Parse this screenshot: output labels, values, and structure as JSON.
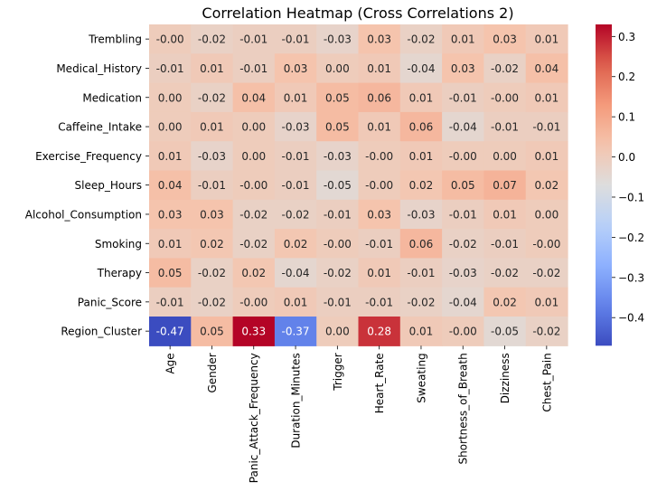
{
  "chart_data": {
    "type": "heatmap",
    "title": "Correlation Heatmap (Cross Correlations 2)",
    "xlabel": "",
    "ylabel": "",
    "colormap": "coolwarm",
    "vmin": -0.47,
    "vmax": 0.33,
    "value_format": "2 decimals",
    "rows": [
      "Trembling",
      "Medical_History",
      "Medication",
      "Caffeine_Intake",
      "Exercise_Frequency",
      "Sleep_Hours",
      "Alcohol_Consumption",
      "Smoking",
      "Therapy",
      "Panic_Score",
      "Region_Cluster"
    ],
    "columns": [
      "Age",
      "Gender",
      "Panic_Attack_Frequency",
      "Duration_Minutes",
      "Trigger",
      "Heart_Rate",
      "Sweating",
      "Shortness_of_Breath",
      "Dizziness",
      "Chest_Pain"
    ],
    "values": [
      [
        -0.0,
        -0.02,
        -0.01,
        -0.01,
        -0.03,
        0.03,
        -0.02,
        0.01,
        0.03,
        0.01
      ],
      [
        -0.01,
        0.01,
        -0.01,
        0.03,
        0.0,
        0.01,
        -0.04,
        0.03,
        -0.02,
        0.04
      ],
      [
        0.0,
        -0.02,
        0.04,
        0.01,
        0.05,
        0.06,
        0.01,
        -0.01,
        -0.0,
        0.01
      ],
      [
        0.0,
        0.01,
        0.0,
        -0.03,
        0.05,
        0.01,
        0.06,
        -0.04,
        -0.01,
        -0.01
      ],
      [
        0.01,
        -0.03,
        0.0,
        -0.01,
        -0.03,
        -0.0,
        0.01,
        -0.0,
        0.0,
        0.01
      ],
      [
        0.04,
        -0.01,
        -0.0,
        -0.01,
        -0.05,
        -0.0,
        0.02,
        0.05,
        0.07,
        0.02
      ],
      [
        0.03,
        0.03,
        -0.02,
        -0.02,
        -0.01,
        0.03,
        -0.03,
        -0.01,
        0.01,
        0.0
      ],
      [
        0.01,
        0.02,
        -0.02,
        0.02,
        -0.0,
        -0.01,
        0.06,
        -0.02,
        -0.01,
        -0.0
      ],
      [
        0.05,
        -0.02,
        0.02,
        -0.04,
        -0.02,
        0.01,
        -0.01,
        -0.03,
        -0.02,
        -0.02
      ],
      [
        -0.01,
        -0.02,
        -0.0,
        0.01,
        -0.01,
        -0.01,
        -0.02,
        -0.04,
        0.02,
        0.01
      ],
      [
        -0.47,
        0.05,
        0.33,
        -0.37,
        0.0,
        0.28,
        0.01,
        -0.0,
        -0.05,
        -0.02
      ]
    ],
    "colorbar": {
      "ticks": [
        0.3,
        0.2,
        0.1,
        0.0,
        -0.1,
        -0.2,
        -0.3,
        -0.4
      ],
      "tick_labels": [
        "0.3",
        "0.2",
        "0.1",
        "0.0",
        "−0.1",
        "−0.2",
        "−0.3",
        "−0.4"
      ]
    }
  }
}
